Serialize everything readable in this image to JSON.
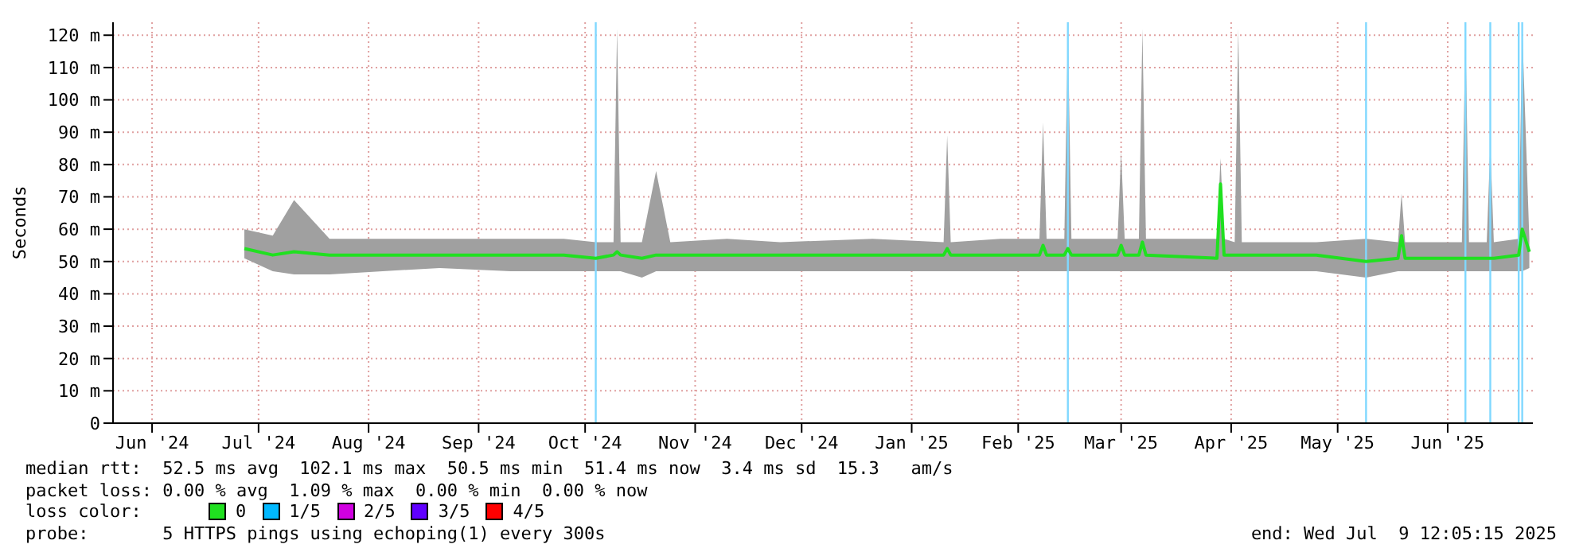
{
  "chart_data": {
    "type": "line",
    "ylabel": "Seconds",
    "xlim": [
      "2024-06-05",
      "2025-07-10"
    ],
    "xticks": [
      {
        "value": "2024-06-16",
        "label": "Jun '24"
      },
      {
        "value": "2024-07-16",
        "label": "Jul '24"
      },
      {
        "value": "2024-08-16",
        "label": "Aug '24"
      },
      {
        "value": "2024-09-16",
        "label": "Sep '24"
      },
      {
        "value": "2024-10-16",
        "label": "Oct '24"
      },
      {
        "value": "2024-11-16",
        "label": "Nov '24"
      },
      {
        "value": "2024-12-16",
        "label": "Dec '24"
      },
      {
        "value": "2025-01-16",
        "label": "Jan '25"
      },
      {
        "value": "2025-02-15",
        "label": "Feb '25"
      },
      {
        "value": "2025-03-16",
        "label": "Mar '25"
      },
      {
        "value": "2025-04-16",
        "label": "Apr '25"
      },
      {
        "value": "2025-05-16",
        "label": "May '25"
      },
      {
        "value": "2025-06-16",
        "label": "Jun '25"
      }
    ],
    "ylim": [
      0,
      124
    ],
    "yticks": [
      0,
      {
        "value": 10,
        "label": "10 m"
      },
      {
        "value": 20,
        "label": "20 m"
      },
      {
        "value": 30,
        "label": "30 m"
      },
      {
        "value": 40,
        "label": "40 m"
      },
      {
        "value": 50,
        "label": "50 m"
      },
      {
        "value": 60,
        "label": "60 m"
      },
      {
        "value": 70,
        "label": "70 m"
      },
      {
        "value": 80,
        "label": "80 m"
      },
      {
        "value": 90,
        "label": "90 m"
      },
      {
        "value": 100,
        "label": "100 m"
      },
      {
        "value": 110,
        "label": "110 m"
      },
      {
        "value": 120,
        "label": "120 m"
      }
    ],
    "grid": true,
    "legend": "bottom",
    "legend_title": "loss color:",
    "series": [
      {
        "name": "0",
        "color": "#20e020",
        "x": [
          "2024-07-12",
          "2024-07-20",
          "2024-07-26",
          "2024-08-05",
          "2024-08-20",
          "2024-09-05",
          "2024-09-25",
          "2024-10-10",
          "2024-10-19",
          "2024-10-24",
          "2024-10-25",
          "2024-10-26",
          "2024-11-01",
          "2024-11-05",
          "2024-11-09",
          "2024-11-25",
          "2024-12-10",
          "2025-01-05",
          "2025-01-25",
          "2025-01-26",
          "2025-01-27",
          "2025-02-10",
          "2025-02-21",
          "2025-02-22",
          "2025-02-23",
          "2025-02-28",
          "2025-03-01",
          "2025-03-02",
          "2025-03-15",
          "2025-03-16",
          "2025-03-17",
          "2025-03-21",
          "2025-03-22",
          "2025-03-23",
          "2025-04-12",
          "2025-04-13",
          "2025-04-14",
          "2025-04-17",
          "2025-04-18",
          "2025-04-19",
          "2025-05-10",
          "2025-05-24",
          "2025-06-02",
          "2025-06-03",
          "2025-06-04",
          "2025-06-20",
          "2025-06-21",
          "2025-06-22",
          "2025-06-27",
          "2025-06-28",
          "2025-06-29",
          "2025-07-06",
          "2025-07-07",
          "2025-07-09"
        ],
        "values": [
          54,
          52,
          53,
          52,
          52,
          52,
          52,
          52,
          51,
          52,
          53,
          52,
          51,
          52,
          52,
          52,
          52,
          52,
          52,
          54,
          52,
          52,
          52,
          55,
          52,
          52,
          54,
          52,
          52,
          55,
          52,
          52,
          56,
          52,
          51,
          74,
          52,
          52,
          52,
          52,
          52,
          50,
          51,
          58,
          51,
          51,
          51,
          51,
          51,
          51,
          51,
          52,
          60,
          53
        ],
        "lower": [
          51,
          47,
          46,
          46,
          47,
          48,
          47,
          47,
          47,
          47,
          47,
          47,
          45,
          47,
          47,
          47,
          47,
          47,
          47,
          47,
          47,
          47,
          47,
          47,
          47,
          47,
          47,
          47,
          47,
          47,
          47,
          47,
          47,
          47,
          47,
          47,
          47,
          47,
          47,
          47,
          47,
          45,
          47,
          47,
          47,
          47,
          47,
          47,
          47,
          47,
          47,
          47,
          47,
          48
        ],
        "upper": [
          60,
          58,
          69,
          57,
          57,
          57,
          57,
          57,
          56,
          56,
          122,
          56,
          56,
          78,
          56,
          57,
          56,
          57,
          56,
          89,
          56,
          57,
          57,
          93,
          57,
          57,
          122,
          57,
          57,
          84,
          57,
          57,
          122,
          57,
          57,
          82,
          57,
          56,
          122,
          56,
          56,
          57,
          56,
          71,
          56,
          56,
          122,
          56,
          56,
          86,
          56,
          57,
          122,
          57
        ]
      },
      {
        "name": "1/5",
        "color": "#00b8ff"
      },
      {
        "name": "2/5",
        "color": "#d000e0"
      },
      {
        "name": "3/5",
        "color": "#6000ff"
      },
      {
        "name": "4/5",
        "color": "#ff0000"
      }
    ],
    "ref_lines": [
      {
        "axis": "x",
        "value": "2024-10-19",
        "color": "#80d8ff"
      },
      {
        "axis": "x",
        "value": "2025-03-01",
        "color": "#80d8ff"
      },
      {
        "axis": "x",
        "value": "2025-05-24",
        "color": "#80d8ff"
      },
      {
        "axis": "x",
        "value": "2025-06-21",
        "color": "#80d8ff"
      },
      {
        "axis": "x",
        "value": "2025-06-28",
        "color": "#80d8ff"
      },
      {
        "axis": "x",
        "value": "2025-07-06",
        "color": "#80d8ff"
      },
      {
        "axis": "x",
        "value": "2025-07-07",
        "color": "#80d8ff"
      }
    ],
    "annotations": [
      "median rtt:  52.5 ms avg  102.1 ms max  50.5 ms min  51.4 ms now  3.4 ms sd  15.3   am/s",
      "packet loss: 0.00 % avg  1.09 % max  0.00 % min  0.00 % now",
      "probe:       5 HTTPS pings using echoping(1) every 300s",
      "end: Wed Jul  9 12:05:15 2025"
    ]
  }
}
